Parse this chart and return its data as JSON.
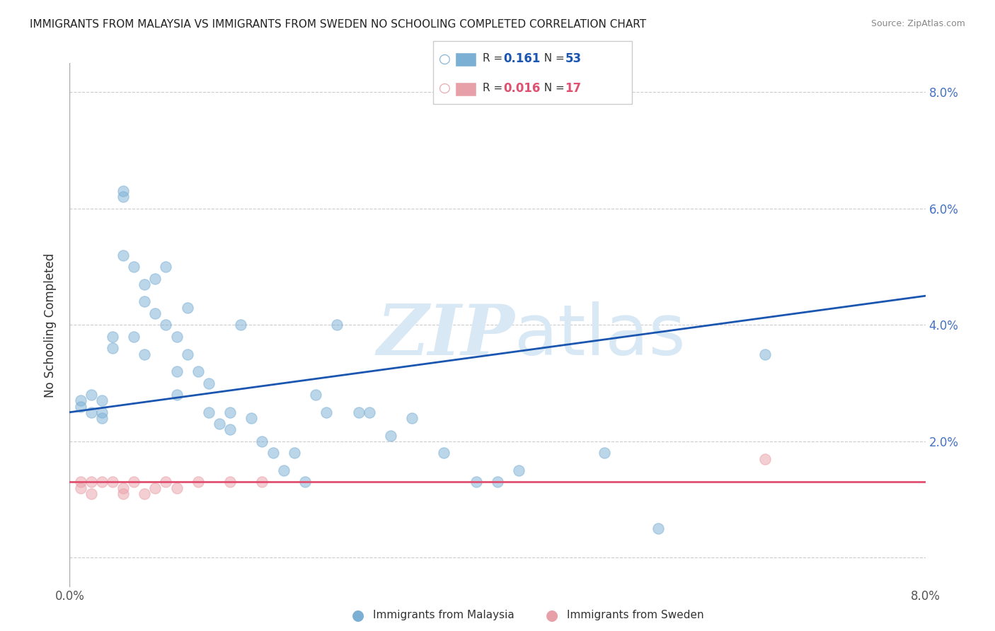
{
  "title": "IMMIGRANTS FROM MALAYSIA VS IMMIGRANTS FROM SWEDEN NO SCHOOLING COMPLETED CORRELATION CHART",
  "source": "Source: ZipAtlas.com",
  "ylabel": "No Schooling Completed",
  "xlim": [
    0.0,
    0.08
  ],
  "ylim": [
    -0.005,
    0.085
  ],
  "ytick_vals": [
    0.0,
    0.02,
    0.04,
    0.06,
    0.08
  ],
  "ytick_labels": [
    "",
    "2.0%",
    "4.0%",
    "6.0%",
    "8.0%"
  ],
  "malaysia_color": "#7bafd4",
  "sweden_color": "#e8a0a8",
  "malaysia_line_color": "#1a56b0",
  "sweden_line_color": "#e05070",
  "malaysia_R": 0.161,
  "malaysia_N": 53,
  "sweden_R": 0.016,
  "sweden_N": 17,
  "watermark_zip": "ZIP",
  "watermark_atlas": "atlas",
  "watermark_color": "#d8e8f4",
  "malaysia_scatter_x": [
    0.001,
    0.001,
    0.002,
    0.002,
    0.003,
    0.003,
    0.003,
    0.004,
    0.004,
    0.005,
    0.005,
    0.005,
    0.006,
    0.006,
    0.007,
    0.007,
    0.007,
    0.008,
    0.008,
    0.009,
    0.009,
    0.01,
    0.01,
    0.01,
    0.011,
    0.011,
    0.012,
    0.013,
    0.013,
    0.014,
    0.015,
    0.015,
    0.016,
    0.017,
    0.018,
    0.019,
    0.02,
    0.021,
    0.022,
    0.023,
    0.024,
    0.025,
    0.027,
    0.028,
    0.03,
    0.032,
    0.035,
    0.038,
    0.04,
    0.042,
    0.05,
    0.055,
    0.065
  ],
  "malaysia_scatter_y": [
    0.027,
    0.026,
    0.028,
    0.025,
    0.027,
    0.025,
    0.024,
    0.038,
    0.036,
    0.063,
    0.062,
    0.052,
    0.05,
    0.038,
    0.047,
    0.044,
    0.035,
    0.048,
    0.042,
    0.05,
    0.04,
    0.038,
    0.032,
    0.028,
    0.035,
    0.043,
    0.032,
    0.03,
    0.025,
    0.023,
    0.025,
    0.022,
    0.04,
    0.024,
    0.02,
    0.018,
    0.015,
    0.018,
    0.013,
    0.028,
    0.025,
    0.04,
    0.025,
    0.025,
    0.021,
    0.024,
    0.018,
    0.013,
    0.013,
    0.015,
    0.018,
    0.005,
    0.035
  ],
  "sweden_scatter_x": [
    0.001,
    0.001,
    0.002,
    0.002,
    0.003,
    0.004,
    0.005,
    0.005,
    0.006,
    0.007,
    0.008,
    0.009,
    0.01,
    0.012,
    0.015,
    0.018,
    0.065
  ],
  "sweden_scatter_y": [
    0.013,
    0.012,
    0.013,
    0.011,
    0.013,
    0.013,
    0.012,
    0.011,
    0.013,
    0.011,
    0.012,
    0.013,
    0.012,
    0.013,
    0.013,
    0.013,
    0.017
  ],
  "malaysia_line_x0": 0.0,
  "malaysia_line_y0": 0.025,
  "malaysia_line_x1": 0.08,
  "malaysia_line_y1": 0.045,
  "sweden_line_x0": 0.0,
  "sweden_line_y0": 0.013,
  "sweden_line_x1": 0.08,
  "sweden_line_y1": 0.013
}
